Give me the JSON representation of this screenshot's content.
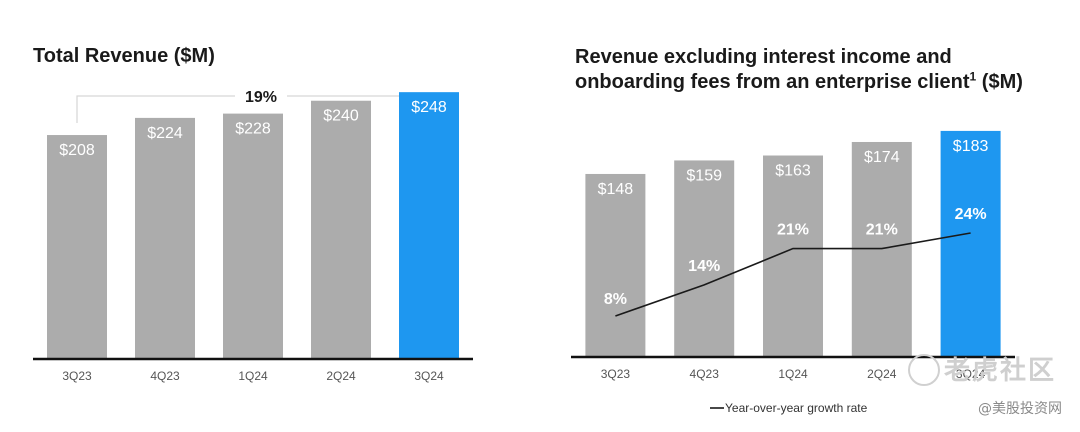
{
  "chart_data": [
    {
      "type": "bar",
      "title": "Total Revenue ($M)",
      "categories": [
        "3Q23",
        "4Q23",
        "1Q24",
        "2Q24",
        "3Q24"
      ],
      "values": [
        208,
        224,
        228,
        240,
        248
      ],
      "value_labels": [
        "$208",
        "$224",
        "$228",
        "$240",
        "$248"
      ],
      "highlight_index": 4,
      "annotation": {
        "text": "19%",
        "from_category": "3Q23",
        "to_category": "3Q24"
      },
      "ylim": [
        0,
        260
      ],
      "grid": false,
      "colors": {
        "bar": "#acacac",
        "highlight": "#1e97f0",
        "axis": "#111111"
      }
    },
    {
      "type": "bar",
      "title": "Revenue excluding interest income and onboarding fees from an enterprise client",
      "title_footnote": "1",
      "title_suffix": "($M)",
      "categories": [
        "3Q23",
        "4Q23",
        "1Q24",
        "2Q24",
        "3Q24"
      ],
      "values": [
        148,
        159,
        163,
        174,
        183
      ],
      "value_labels": [
        "$148",
        "$159",
        "$163",
        "$174",
        "$183"
      ],
      "highlight_index": 4,
      "series": [
        {
          "name": "Year-over-year growth rate",
          "type": "line",
          "values": [
            8,
            14,
            21,
            21,
            24
          ],
          "labels": [
            "8%",
            "14%",
            "21%",
            "21%",
            "24%"
          ]
        }
      ],
      "legend": {
        "position": "bottom",
        "entries": [
          "Year-over-year growth rate"
        ]
      },
      "ylim": [
        0,
        200
      ],
      "grid": false,
      "colors": {
        "bar": "#acacac",
        "highlight": "#1e97f0",
        "axis": "#111111",
        "line": "#1a1a1a"
      }
    }
  ],
  "watermark": {
    "main": "老虎社区",
    "sub": "@美股投资网"
  }
}
